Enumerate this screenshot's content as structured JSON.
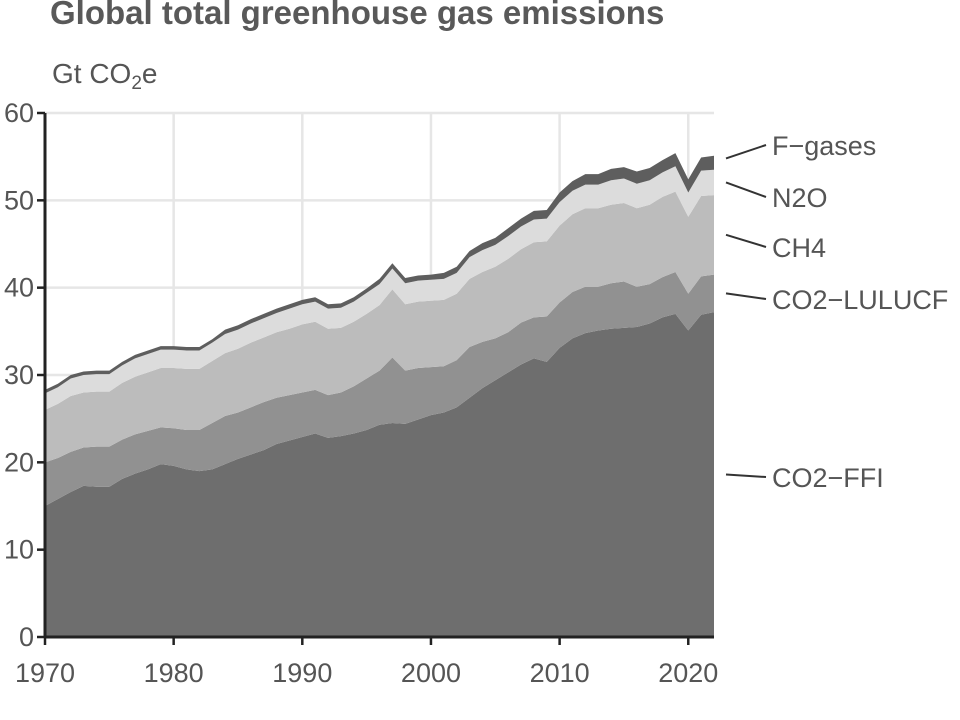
{
  "title": "Global total greenhouse gas emissions",
  "unit": {
    "main": "Gt CO",
    "sub": "2",
    "suffix": "e"
  },
  "chart_data": {
    "type": "area",
    "stacked": true,
    "title": "Global total greenhouse gas emissions",
    "ylabel": "Gt CO2e",
    "xlim": [
      1970,
      2022
    ],
    "ylim": [
      0,
      60
    ],
    "xticks": [
      1970,
      1980,
      1990,
      2000,
      2010,
      2020
    ],
    "yticks": [
      0,
      10,
      20,
      30,
      40,
      50,
      60
    ],
    "grid": true,
    "legend": "direct labels at right",
    "colors": {
      "CO2-FFI": "#6e6e6e",
      "CO2-LULUCF": "#919191",
      "CH4": "#bcbcbc",
      "N2O": "#dcdcdc",
      "F-gases": "#5e5e5e"
    },
    "x": [
      1970,
      1971,
      1972,
      1973,
      1974,
      1975,
      1976,
      1977,
      1978,
      1979,
      1980,
      1981,
      1982,
      1983,
      1984,
      1985,
      1986,
      1987,
      1988,
      1989,
      1990,
      1991,
      1992,
      1993,
      1994,
      1995,
      1996,
      1997,
      1998,
      1999,
      2000,
      2001,
      2002,
      2003,
      2004,
      2005,
      2006,
      2007,
      2008,
      2009,
      2010,
      2011,
      2012,
      2013,
      2014,
      2015,
      2016,
      2017,
      2018,
      2019,
      2020,
      2021,
      2022
    ],
    "series": [
      {
        "name": "CO2-FFI",
        "values": [
          15.0,
          15.8,
          16.6,
          17.3,
          17.2,
          17.2,
          18.1,
          18.7,
          19.2,
          19.8,
          19.6,
          19.2,
          19.0,
          19.2,
          19.8,
          20.4,
          20.9,
          21.4,
          22.1,
          22.5,
          22.9,
          23.3,
          22.8,
          23.0,
          23.3,
          23.7,
          24.3,
          24.5,
          24.4,
          24.9,
          25.4,
          25.7,
          26.3,
          27.4,
          28.5,
          29.4,
          30.3,
          31.2,
          31.9,
          31.5,
          33.1,
          34.2,
          34.8,
          35.1,
          35.3,
          35.4,
          35.5,
          35.9,
          36.6,
          37.0,
          35.1,
          36.9,
          37.2
        ]
      },
      {
        "name": "CO2-LULUCF",
        "values": [
          5.0,
          4.7,
          4.6,
          4.4,
          4.6,
          4.6,
          4.5,
          4.5,
          4.4,
          4.2,
          4.3,
          4.5,
          4.7,
          5.3,
          5.5,
          5.3,
          5.4,
          5.5,
          5.3,
          5.2,
          5.1,
          5.0,
          4.9,
          5.0,
          5.4,
          5.9,
          6.2,
          7.5,
          6.1,
          5.9,
          5.5,
          5.3,
          5.4,
          5.8,
          5.3,
          4.8,
          4.6,
          4.8,
          4.7,
          5.2,
          5.2,
          5.3,
          5.3,
          5.0,
          5.2,
          5.3,
          4.6,
          4.5,
          4.6,
          4.8,
          4.2,
          4.4,
          4.3
        ]
      },
      {
        "name": "CH4",
        "values": [
          6.0,
          6.2,
          6.4,
          6.3,
          6.3,
          6.3,
          6.5,
          6.6,
          6.7,
          6.8,
          6.9,
          7.0,
          7.0,
          7.1,
          7.2,
          7.3,
          7.4,
          7.4,
          7.5,
          7.6,
          7.8,
          7.8,
          7.6,
          7.4,
          7.4,
          7.4,
          7.5,
          7.8,
          7.6,
          7.6,
          7.6,
          7.6,
          7.6,
          7.8,
          8.0,
          8.2,
          8.4,
          8.4,
          8.6,
          8.6,
          8.8,
          8.9,
          9.0,
          9.0,
          9.0,
          9.0,
          9.0,
          9.1,
          9.2,
          9.2,
          8.8,
          9.2,
          9.1
        ]
      },
      {
        "name": "N2O",
        "values": [
          1.9,
          1.9,
          2.0,
          2.0,
          2.0,
          2.0,
          2.0,
          2.1,
          2.1,
          2.1,
          2.1,
          2.1,
          2.1,
          2.1,
          2.2,
          2.2,
          2.2,
          2.2,
          2.2,
          2.3,
          2.3,
          2.3,
          2.3,
          2.3,
          2.3,
          2.4,
          2.4,
          2.4,
          2.4,
          2.4,
          2.4,
          2.4,
          2.4,
          2.5,
          2.5,
          2.5,
          2.6,
          2.6,
          2.6,
          2.6,
          2.7,
          2.7,
          2.7,
          2.7,
          2.8,
          2.8,
          2.8,
          2.8,
          2.8,
          2.9,
          2.8,
          2.9,
          2.9
        ]
      },
      {
        "name": "F-gases",
        "values": [
          0.4,
          0.4,
          0.4,
          0.4,
          0.4,
          0.4,
          0.4,
          0.4,
          0.4,
          0.4,
          0.4,
          0.4,
          0.4,
          0.4,
          0.5,
          0.5,
          0.5,
          0.5,
          0.5,
          0.5,
          0.5,
          0.5,
          0.5,
          0.5,
          0.5,
          0.5,
          0.6,
          0.6,
          0.6,
          0.6,
          0.6,
          0.7,
          0.7,
          0.7,
          0.8,
          0.8,
          0.9,
          0.9,
          1.0,
          1.0,
          1.1,
          1.1,
          1.2,
          1.2,
          1.3,
          1.3,
          1.4,
          1.4,
          1.4,
          1.5,
          1.5,
          1.5,
          1.6
        ]
      }
    ],
    "legend_order": [
      "F-gases",
      "N2O",
      "CH4",
      "CO2-LULUCF",
      "CO2-FFI"
    ],
    "legend_labels": {
      "F-gases": "F−gases",
      "N2O": "N2O",
      "CH4": "CH4",
      "CO2-LULUCF": "CO2−LULUCF",
      "CO2-FFI": "CO2−FFI"
    }
  }
}
